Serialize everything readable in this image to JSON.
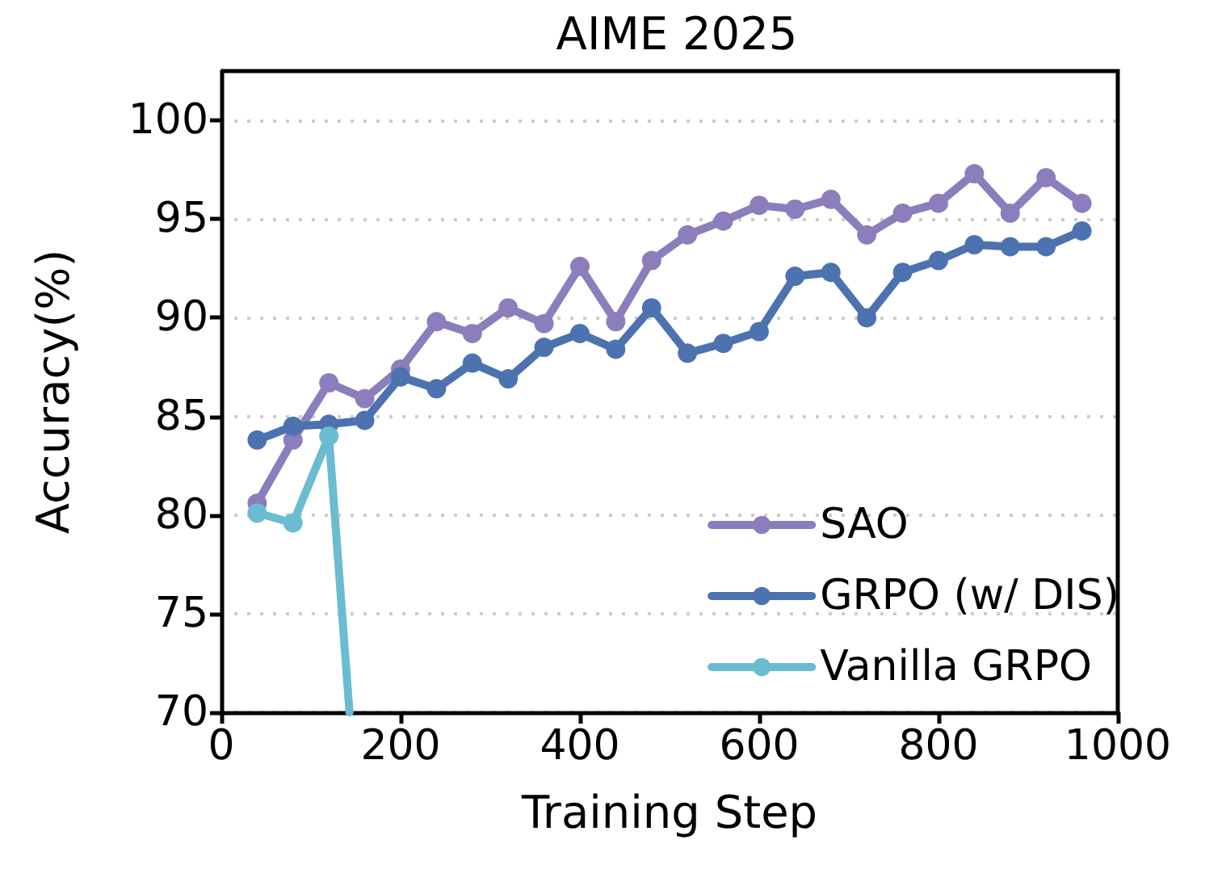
{
  "chart_data": {
    "type": "line",
    "title": "AIME 2025",
    "xlabel": "Training Step",
    "ylabel": "Accuracy(%)",
    "x": [
      40,
      80,
      120,
      160,
      200,
      240,
      280,
      320,
      360,
      400,
      440,
      480,
      520,
      560,
      600,
      640,
      680,
      720,
      760,
      800,
      840,
      880,
      920,
      960
    ],
    "series": [
      {
        "name": "SAO",
        "color": "#8c7dbd",
        "values": [
          80.6,
          83.8,
          86.7,
          85.9,
          87.4,
          89.8,
          89.2,
          90.5,
          89.7,
          92.6,
          89.8,
          92.9,
          94.2,
          94.9,
          95.7,
          95.5,
          96.0,
          94.2,
          95.3,
          95.8,
          97.3,
          95.3,
          97.1,
          95.8
        ]
      },
      {
        "name": "GRPO (w/ DIS)",
        "color": "#4c72b0",
        "values": [
          83.8,
          84.5,
          84.6,
          84.8,
          87.0,
          86.4,
          87.7,
          86.9,
          88.5,
          89.2,
          88.4,
          90.5,
          88.2,
          88.7,
          89.3,
          92.1,
          92.3,
          90.0,
          92.3,
          92.9,
          93.7,
          93.6,
          93.6,
          94.4
        ]
      },
      {
        "name": "Vanilla GRPO",
        "color": "#6bbcd1",
        "x": [
          40,
          80,
          120,
          143
        ],
        "values": [
          80.1,
          79.6,
          84.0,
          70
        ]
      }
    ],
    "xlim": [
      0,
      1000
    ],
    "xticks": [
      0,
      200,
      400,
      600,
      800,
      1000
    ],
    "ylim": [
      70,
      102.5
    ],
    "yticks": [
      70,
      75,
      80,
      85,
      90,
      95,
      100
    ],
    "grid": "y",
    "legend": "bottom right",
    "marker": "circle",
    "line_style": "solid"
  }
}
